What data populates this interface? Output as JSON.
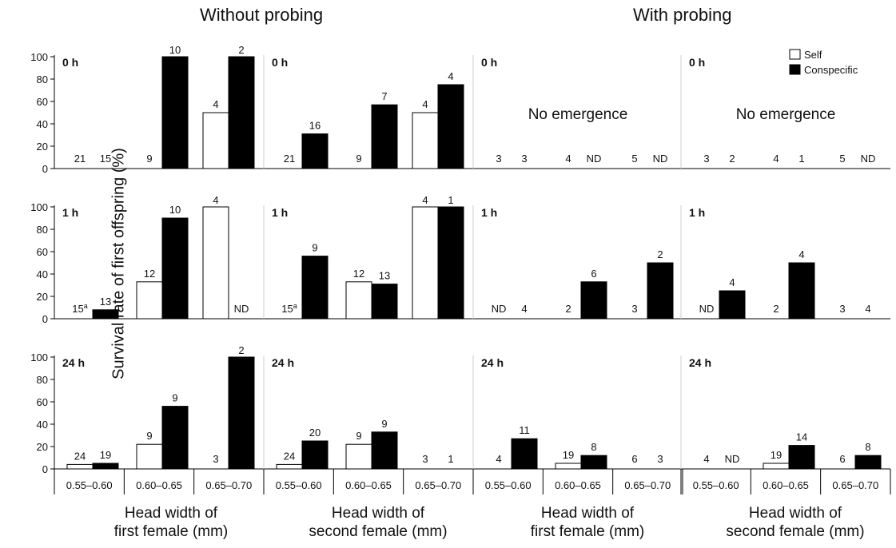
{
  "figure": {
    "group_titles": [
      "Without probing",
      "With probing"
    ],
    "ylabel": "Survival rate of first offspring (%)",
    "legend": {
      "self_label": "Self",
      "conspecific_label": "Conspecific"
    },
    "colors": {
      "self": "#ffffff",
      "conspecific": "#000000",
      "axis": "#000000",
      "text": "#111111"
    },
    "special_text": {
      "no_emergence": "No emergence",
      "nd": "ND",
      "superscript_a": "a"
    },
    "x_titles": [
      {
        "line1": "Head width of",
        "line2": "first female (mm)"
      },
      {
        "line1": "Head width of",
        "line2": "second female (mm)"
      },
      {
        "line1": "Head width of",
        "line2": "first female (mm)"
      },
      {
        "line1": "Head width of",
        "line2": "second female (mm)"
      }
    ]
  },
  "chart_data": {
    "type": "bar",
    "categories": [
      "0.55–0.60",
      "0.60–0.65",
      "0.65–0.70"
    ],
    "yticks": [
      0,
      20,
      40,
      60,
      80,
      100
    ],
    "ylim": [
      0,
      100
    ],
    "legend_position": "top-right",
    "panels": [
      {
        "col": 0,
        "row": 0,
        "time": "0 h",
        "self": [
          0,
          0,
          50
        ],
        "conspecific": [
          0,
          100,
          100
        ],
        "self_n": [
          "21",
          "9",
          "4"
        ],
        "conspecific_n": [
          "15",
          "10",
          "2"
        ]
      },
      {
        "col": 1,
        "row": 0,
        "time": "0 h",
        "self": [
          0,
          0,
          50
        ],
        "conspecific": [
          31,
          57,
          75
        ],
        "self_n": [
          "21",
          "9",
          "4"
        ],
        "conspecific_n": [
          "16",
          "7",
          "4"
        ]
      },
      {
        "col": 2,
        "row": 0,
        "time": "0 h",
        "note": "No emergence",
        "self": [
          0,
          0,
          0
        ],
        "conspecific": [
          0,
          0,
          null
        ],
        "self_n": [
          "3",
          "4",
          "5"
        ],
        "conspecific_n": [
          "3",
          "ND",
          "ND"
        ]
      },
      {
        "col": 3,
        "row": 0,
        "time": "0 h",
        "note": "No emergence",
        "self": [
          0,
          0,
          0
        ],
        "conspecific": [
          0,
          0,
          null
        ],
        "self_n": [
          "3",
          "4",
          "5"
        ],
        "conspecific_n": [
          "2",
          "1",
          "ND"
        ]
      },
      {
        "col": 0,
        "row": 1,
        "time": "1 h",
        "self": [
          0,
          33,
          100
        ],
        "conspecific": [
          8,
          90,
          null
        ],
        "self_n": [
          "15a",
          "12",
          "4"
        ],
        "conspecific_n": [
          "13",
          "10",
          "ND"
        ]
      },
      {
        "col": 1,
        "row": 1,
        "time": "1 h",
        "self": [
          0,
          33,
          100
        ],
        "conspecific": [
          56,
          31,
          100
        ],
        "self_n": [
          "15a",
          "12",
          "4"
        ],
        "conspecific_n": [
          "9",
          "13",
          "1"
        ]
      },
      {
        "col": 2,
        "row": 1,
        "time": "1 h",
        "self": [
          null,
          0,
          0
        ],
        "conspecific": [
          0,
          33,
          50
        ],
        "self_n": [
          "ND",
          "2",
          "3"
        ],
        "conspecific_n": [
          "4",
          "6",
          "2"
        ]
      },
      {
        "col": 3,
        "row": 1,
        "time": "1 h",
        "self": [
          null,
          0,
          0
        ],
        "conspecific": [
          25,
          50,
          0
        ],
        "self_n": [
          "ND",
          "2",
          "3"
        ],
        "conspecific_n": [
          "4",
          "4",
          "4"
        ]
      },
      {
        "col": 0,
        "row": 2,
        "time": "24 h",
        "self": [
          4,
          22,
          0
        ],
        "conspecific": [
          5,
          56,
          100
        ],
        "self_n": [
          "24",
          "9",
          "3"
        ],
        "conspecific_n": [
          "19",
          "9",
          "2"
        ]
      },
      {
        "col": 1,
        "row": 2,
        "time": "24 h",
        "self": [
          4,
          22,
          0
        ],
        "conspecific": [
          25,
          33,
          0
        ],
        "self_n": [
          "24",
          "9",
          "3"
        ],
        "conspecific_n": [
          "20",
          "9",
          "1"
        ]
      },
      {
        "col": 2,
        "row": 2,
        "time": "24 h",
        "self": [
          0,
          5,
          0
        ],
        "conspecific": [
          27,
          12,
          0
        ],
        "self_n": [
          "4",
          "19",
          "6"
        ],
        "conspecific_n": [
          "11",
          "8",
          "3"
        ]
      },
      {
        "col": 3,
        "row": 2,
        "time": "24 h",
        "self": [
          0,
          5,
          0
        ],
        "conspecific": [
          null,
          21,
          12
        ],
        "self_n": [
          "4",
          "19",
          "6"
        ],
        "conspecific_n": [
          "ND",
          "14",
          "8"
        ]
      }
    ]
  }
}
